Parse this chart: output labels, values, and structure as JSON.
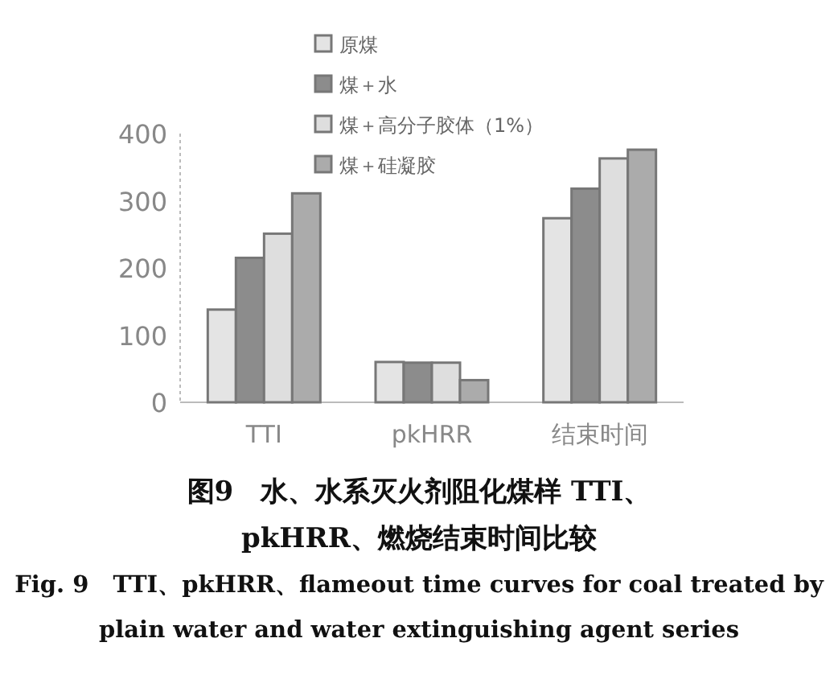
{
  "chart_data": {
    "type": "bar",
    "title": "图9　水、水系灭火剂阻化煤样 TTI、pkHRR、燃烧结束时间比较",
    "subtitle": "Fig. 9　TTI、pkHRR、flameout time curves for coal treated by plain water and water extinguishing agent series",
    "categories": [
      "TTI",
      "pkHRR",
      "结束时间"
    ],
    "series": [
      {
        "name": "原煤",
        "color": "#e4e4e4",
        "values": [
          138,
          60,
          274
        ]
      },
      {
        "name": "煤＋水",
        "color": "#8c8c8c",
        "values": [
          215,
          59,
          318
        ]
      },
      {
        "name": "煤＋高分子胶体（1%）",
        "color": "#dedede",
        "values": [
          251,
          59,
          363
        ]
      },
      {
        "name": "煤＋硅凝胶",
        "color": "#ababab",
        "values": [
          311,
          33,
          376
        ]
      }
    ],
    "ylim": [
      0,
      400
    ],
    "yticks": [
      0,
      100,
      200,
      300,
      400
    ],
    "grid": false,
    "legend": "top"
  }
}
